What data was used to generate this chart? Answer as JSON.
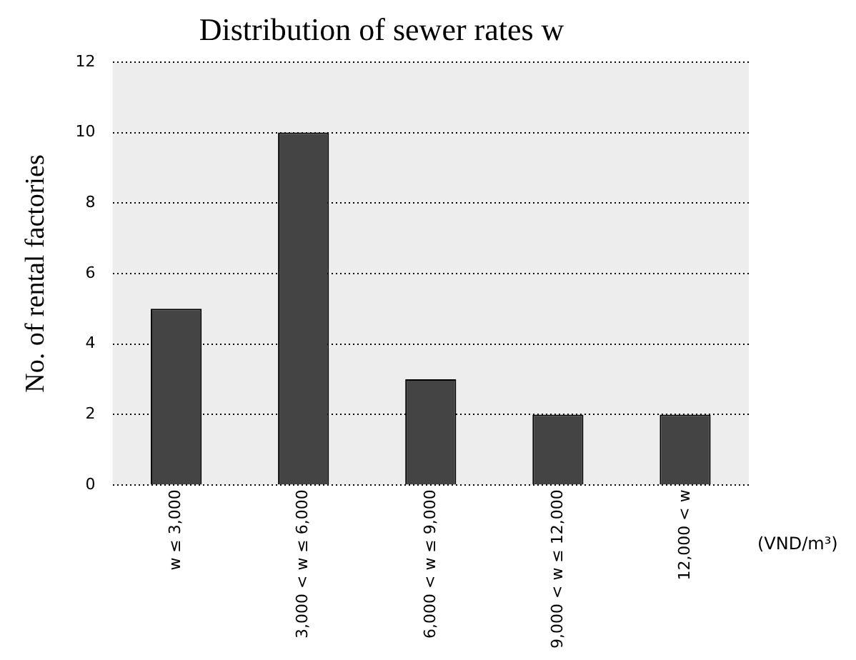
{
  "chart_data": {
    "type": "bar",
    "title": "Distribution of sewer rates w",
    "xlabel": "(VND/m³)",
    "ylabel": "No. of rental factories",
    "categories": [
      "w ≤ 3,000",
      "3,000 < w ≤ 6,000",
      "6,000 < w ≤ 9,000",
      "9,000 < w ≤ 12,000",
      "12,000 < w"
    ],
    "values": [
      5,
      10,
      3,
      2,
      2
    ],
    "color": "#444444",
    "ylim": [
      0,
      12
    ],
    "yticks": [
      0,
      2,
      4,
      6,
      8,
      10,
      12
    ],
    "grid": "y",
    "legend": false
  }
}
